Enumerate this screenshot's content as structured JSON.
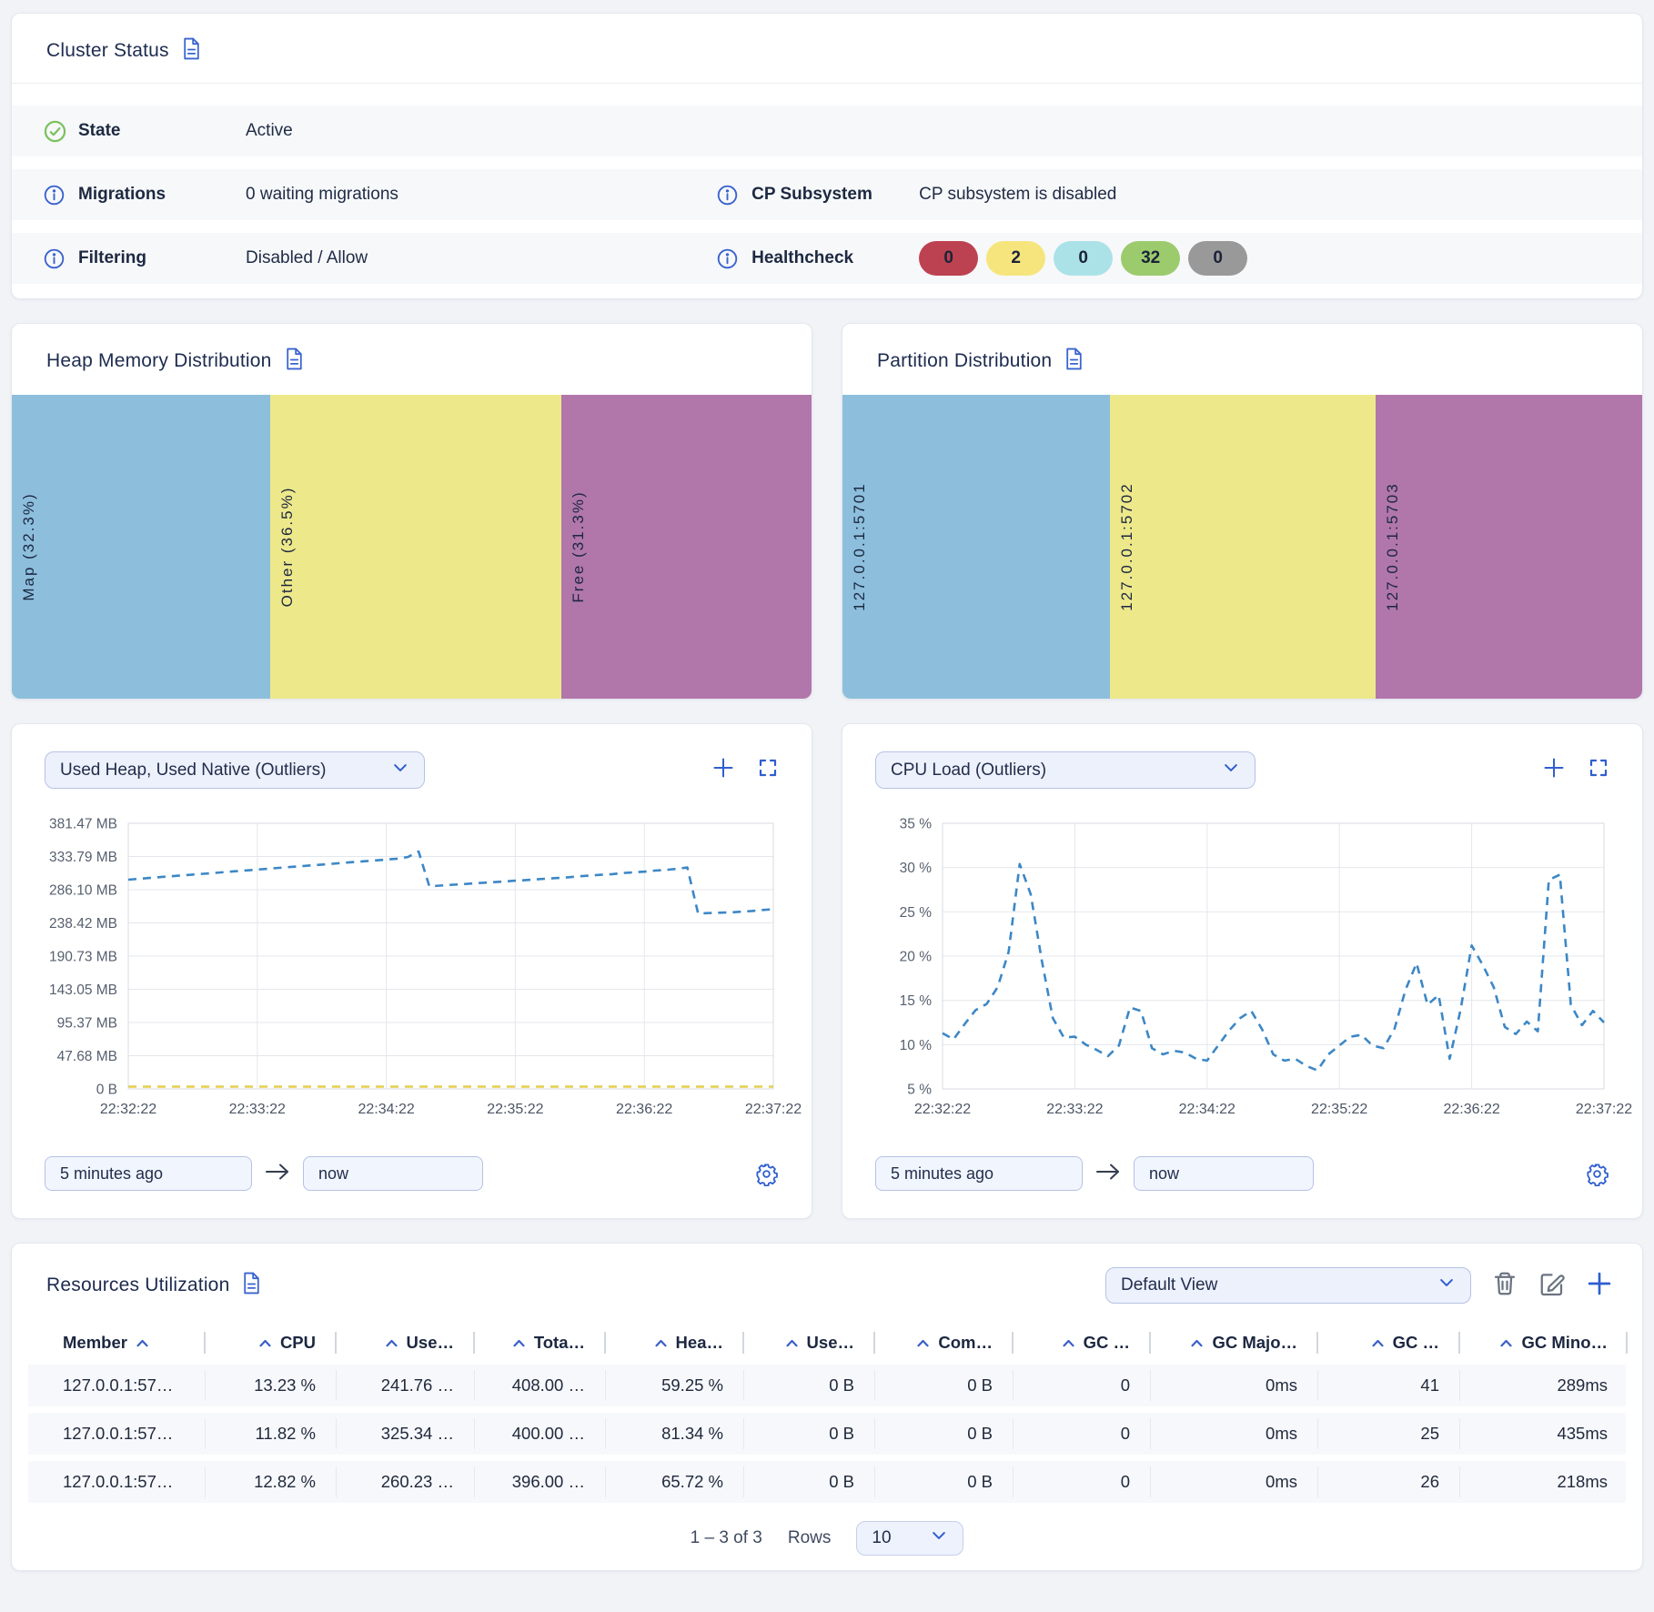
{
  "cluster_status": {
    "title": "Cluster Status",
    "rows": [
      {
        "icon": "check",
        "label": "State",
        "value": "Active"
      },
      {
        "icon": "info",
        "label": "Migrations",
        "value": "0 waiting migrations"
      },
      {
        "icon": "info",
        "label": "Filtering",
        "value": "Disabled / Allow"
      }
    ],
    "right_rows": [
      {
        "icon": "info",
        "label": "CP Subsystem",
        "value": "CP subsystem is disabled"
      },
      {
        "icon": "info",
        "label": "Healthcheck",
        "badges": [
          {
            "value": "0",
            "color": "#bd4251"
          },
          {
            "value": "2",
            "color": "#f6e57d"
          },
          {
            "value": "0",
            "color": "#abe2e8"
          },
          {
            "value": "32",
            "color": "#9ccb6e"
          },
          {
            "value": "0",
            "color": "#9a999a"
          }
        ]
      }
    ]
  },
  "heap_distribution": {
    "title": "Heap Memory Distribution",
    "segments": [
      {
        "label": "Map (32.3%)",
        "pct": 32.3,
        "color": "#8dbfdd"
      },
      {
        "label": "Other (36.5%)",
        "pct": 36.5,
        "color": "#ede98b"
      },
      {
        "label": "Free (31.3%)",
        "pct": 31.3,
        "color": "#b177ab"
      }
    ]
  },
  "partition_distribution": {
    "title": "Partition Distribution",
    "segments": [
      {
        "label": "127.0.0.1:5701",
        "pct": 33.4,
        "color": "#8dbfdd"
      },
      {
        "label": "127.0.0.1:5702",
        "pct": 33.3,
        "color": "#ede98b"
      },
      {
        "label": "127.0.0.1:5703",
        "pct": 33.3,
        "color": "#b177ab"
      }
    ]
  },
  "heap_chart": {
    "selector_label": "Used Heap, Used Native (Outliers)",
    "chart_data": {
      "type": "line",
      "x_ticks": [
        "22:32:22",
        "22:33:22",
        "22:34:22",
        "22:35:22",
        "22:36:22",
        "22:37:22"
      ],
      "y_tick_labels": [
        "381.47 MB",
        "333.79 MB",
        "286.10 MB",
        "238.42 MB",
        "190.73 MB",
        "143.05 MB",
        "95.37 MB",
        "47.68 MB",
        "0 B"
      ],
      "y_min": 0,
      "y_max": 381.47,
      "grid": true,
      "series": [
        {
          "name": "Used Heap",
          "color": "#3c87c6",
          "style": "dashed",
          "values": [
            300.5,
            301.8,
            303,
            304.2,
            305.4,
            306.6,
            307.8,
            309,
            310.2,
            311.4,
            312.6,
            313.8,
            315,
            316.2,
            317.4,
            318.6,
            319.8,
            321,
            322.2,
            323.4,
            324.6,
            325.8,
            327,
            328.2,
            329.4,
            330.6,
            333,
            341,
            291,
            292,
            293,
            294,
            295,
            296,
            297,
            298,
            299,
            300,
            301,
            302,
            303,
            304,
            305.5,
            306.5,
            307.5,
            308.5,
            310,
            311,
            312,
            313.5,
            314.5,
            316,
            318,
            252,
            252.5,
            253,
            253.5,
            254.5,
            255.5,
            257,
            258
          ]
        },
        {
          "name": "Used Native",
          "color": "#e4cf4e",
          "style": "dashed",
          "values": [
            0,
            0
          ]
        }
      ]
    }
  },
  "cpu_chart": {
    "selector_label": "CPU Load (Outliers)",
    "chart_data": {
      "type": "line",
      "x_ticks": [
        "22:32:22",
        "22:33:22",
        "22:34:22",
        "22:35:22",
        "22:36:22",
        "22:37:22"
      ],
      "y_tick_labels": [
        "35 %",
        "30 %",
        "25 %",
        "20 %",
        "15 %",
        "10 %",
        "5 %"
      ],
      "y_min": 5,
      "y_max": 35,
      "grid": true,
      "series": [
        {
          "name": "CPU Load",
          "color": "#3c87c6",
          "style": "dashed",
          "values": [
            11.3,
            10.6,
            12.3,
            13.9,
            14.6,
            16.5,
            20.5,
            30.4,
            27,
            19.5,
            13,
            10.8,
            10.9,
            10,
            9.4,
            8.7,
            9.9,
            14.2,
            13.8,
            9.6,
            8.9,
            9.3,
            9.1,
            8.4,
            8.2,
            9.9,
            11.6,
            13,
            13.8,
            11.7,
            8.9,
            8.2,
            8.4,
            7.6,
            7.1,
            8.9,
            9.9,
            10.9,
            11.1,
            9.9,
            9.6,
            11.8,
            16.2,
            19.2,
            14.5,
            15.6,
            8.4,
            14,
            21.2,
            19,
            16.5,
            12,
            11.2,
            12.6,
            11.5,
            28.6,
            29.2,
            14.5,
            12.2,
            13.8,
            12.5
          ]
        }
      ]
    }
  },
  "time_controls": {
    "from": "5 minutes ago",
    "to": "now"
  },
  "resources": {
    "title": "Resources Utilization",
    "view_selector": "Default View",
    "actions": [
      "delete-view",
      "edit-view",
      "add-view"
    ],
    "columns": [
      {
        "label": "Member",
        "caret_position": "after",
        "align": "left"
      },
      {
        "label": "CPU"
      },
      {
        "label": "Use…"
      },
      {
        "label": "Tota…"
      },
      {
        "label": "Hea…"
      },
      {
        "label": "Use…"
      },
      {
        "label": "Com…"
      },
      {
        "label": "GC …"
      },
      {
        "label": "GC Majo…"
      },
      {
        "label": "GC …"
      },
      {
        "label": "GC Mino…"
      }
    ],
    "rows": [
      [
        "127.0.0.1:57…",
        "13.23 %",
        "241.76 …",
        "408.00 …",
        "59.25 %",
        "0 B",
        "0 B",
        "0",
        "0ms",
        "41",
        "289ms"
      ],
      [
        "127.0.0.1:57…",
        "11.82 %",
        "325.34 …",
        "400.00 …",
        "81.34 %",
        "0 B",
        "0 B",
        "0",
        "0ms",
        "25",
        "435ms"
      ],
      [
        "127.0.0.1:57…",
        "12.82 %",
        "260.23 …",
        "396.00 …",
        "65.72 %",
        "0 B",
        "0 B",
        "0",
        "0ms",
        "26",
        "218ms"
      ]
    ],
    "pagination": {
      "range": "1 – 3 of 3",
      "rows_label": "Rows",
      "page_size": "10"
    }
  },
  "colors": {
    "accent_blue": "#3a63cf",
    "segment_blue": "#8dbfdd",
    "segment_yellow": "#ede98b",
    "segment_purple": "#b177ab",
    "line_blue": "#3c87c6",
    "line_yellow": "#e4cf4e",
    "state_green": "#7cc25e"
  }
}
